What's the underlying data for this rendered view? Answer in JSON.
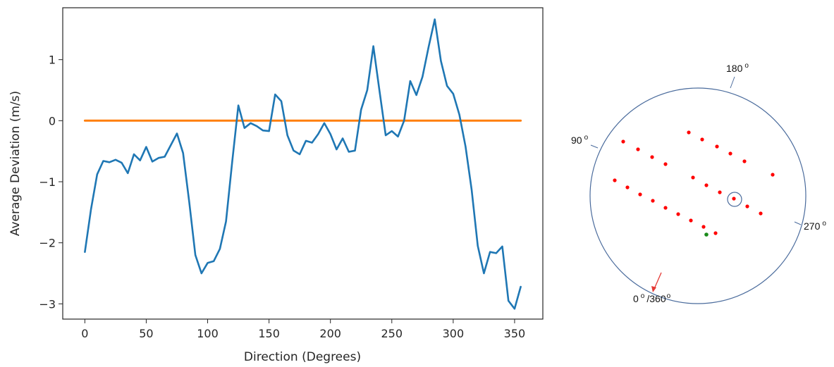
{
  "chart_data": [
    {
      "type": "line",
      "title": "",
      "xlabel": "Direction (Degrees)",
      "ylabel": "Average Deviation (m/s)",
      "xlim": [
        -18,
        373
      ],
      "ylim": [
        -3.25,
        1.85
      ],
      "xticks": [
        0,
        50,
        100,
        150,
        200,
        250,
        300,
        350
      ],
      "yticks": [
        1,
        0,
        -1,
        -2,
        -3
      ],
      "xtick_labels": [
        "0",
        "50",
        "100",
        "150",
        "200",
        "250",
        "300",
        "350"
      ],
      "ytick_labels": [
        "1",
        "0",
        "−1",
        "−2",
        "−3"
      ],
      "grid": false,
      "legend": "none",
      "series": [
        {
          "color": "#1f77b4",
          "x": [
            0,
            5,
            10,
            15,
            20,
            25,
            30,
            35,
            40,
            45,
            50,
            55,
            60,
            65,
            70,
            75,
            80,
            85,
            90,
            95,
            100,
            105,
            110,
            115,
            120,
            125,
            130,
            135,
            140,
            145,
            150,
            155,
            160,
            165,
            170,
            175,
            180,
            185,
            190,
            195,
            200,
            205,
            210,
            215,
            220,
            225,
            230,
            235,
            240,
            245,
            250,
            255,
            260,
            265,
            270,
            275,
            280,
            285,
            290,
            295,
            300,
            305,
            310,
            315,
            320,
            325,
            330,
            335,
            340,
            345,
            350,
            355
          ],
          "y": [
            -2.15,
            -1.45,
            -0.88,
            -0.66,
            -0.68,
            -0.64,
            -0.69,
            -0.86,
            -0.55,
            -0.65,
            -0.43,
            -0.67,
            -0.61,
            -0.59,
            -0.4,
            -0.21,
            -0.53,
            -1.33,
            -2.2,
            -2.5,
            -2.33,
            -2.3,
            -2.1,
            -1.65,
            -0.67,
            0.25,
            -0.12,
            -0.04,
            -0.09,
            -0.16,
            -0.17,
            0.43,
            0.32,
            -0.24,
            -0.49,
            -0.55,
            -0.33,
            -0.36,
            -0.22,
            -0.04,
            -0.22,
            -0.47,
            -0.29,
            -0.51,
            -0.49,
            0.18,
            0.5,
            1.22,
            0.48,
            -0.24,
            -0.17,
            -0.26,
            0.0,
            0.65,
            0.42,
            0.72,
            1.21,
            1.66,
            0.98,
            0.57,
            0.44,
            0.1,
            -0.42,
            -1.13,
            -2.05,
            -2.5,
            -2.15,
            -2.17,
            -2.06,
            -2.95,
            -3.08,
            -2.72
          ]
        },
        {
          "color": "#ff7f0e",
          "x": [
            0,
            355
          ],
          "y": [
            0,
            0
          ]
        }
      ]
    }
  ],
  "diagram": {
    "ring_color": "#4a6b9c",
    "dot_color": "#ff0000",
    "highlight_dot_color": "#1a8a1a",
    "arrow_color": "#e53935",
    "labels": {
      "deg180": "180",
      "deg90": "90",
      "deg270": "270",
      "deg0": "0",
      "deg360": "/360",
      "degree_mark": "o"
    }
  }
}
